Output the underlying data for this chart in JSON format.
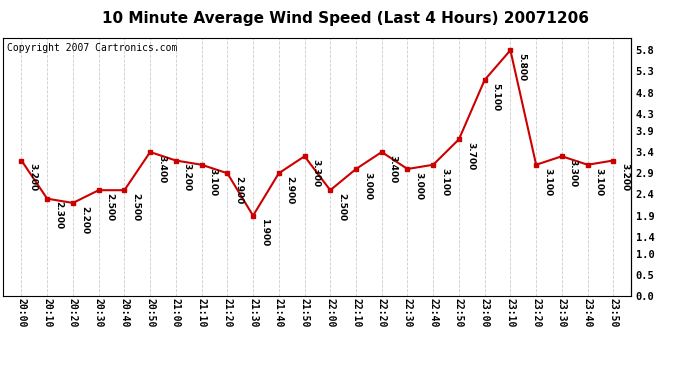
{
  "title": "10 Minute Average Wind Speed (Last 4 Hours) 20071206",
  "copyright_text": "Copyright 2007 Cartronics.com",
  "x_labels": [
    "20:00",
    "20:10",
    "20:20",
    "20:30",
    "20:40",
    "20:50",
    "21:00",
    "21:10",
    "21:20",
    "21:30",
    "21:40",
    "21:50",
    "22:00",
    "22:10",
    "22:20",
    "22:30",
    "22:40",
    "22:50",
    "23:00",
    "23:10",
    "23:20",
    "23:30",
    "23:40",
    "23:50"
  ],
  "y_values": [
    3.2,
    2.3,
    2.2,
    2.5,
    2.5,
    3.4,
    3.2,
    3.1,
    2.9,
    1.9,
    2.9,
    3.3,
    2.5,
    3.0,
    3.4,
    3.0,
    3.1,
    3.7,
    5.1,
    5.8,
    3.1,
    3.3,
    3.1,
    3.2
  ],
  "point_labels": [
    "3.200",
    "2.300",
    "2.200",
    "2.500",
    "2.500",
    "3.400",
    "3.200",
    "3.100",
    "2.900",
    "1.900",
    "2.900",
    "3.300",
    "2.500",
    "3.000",
    "3.400",
    "3.000",
    "3.100",
    "3.700",
    "5.100",
    "5.800",
    "3.100",
    "3.300",
    "3.100",
    "3.200"
  ],
  "line_color": "#cc0000",
  "marker_color": "#cc0000",
  "background_color": "#ffffff",
  "grid_color": "#cccccc",
  "ylim": [
    0.0,
    6.1
  ],
  "yticks": [
    0.0,
    0.5,
    1.0,
    1.4,
    1.9,
    2.4,
    2.9,
    3.4,
    3.9,
    4.3,
    4.8,
    5.3,
    5.8
  ],
  "ytick_labels": [
    "0.0",
    "0.5",
    "1.0",
    "1.4",
    "1.9",
    "2.4",
    "2.9",
    "3.4",
    "3.9",
    "4.3",
    "4.8",
    "5.3",
    "5.8"
  ],
  "title_fontsize": 11,
  "annotation_fontsize": 6.5,
  "copyright_fontsize": 7,
  "xlabel_fontsize": 7,
  "ylabel_fontsize": 7.5
}
